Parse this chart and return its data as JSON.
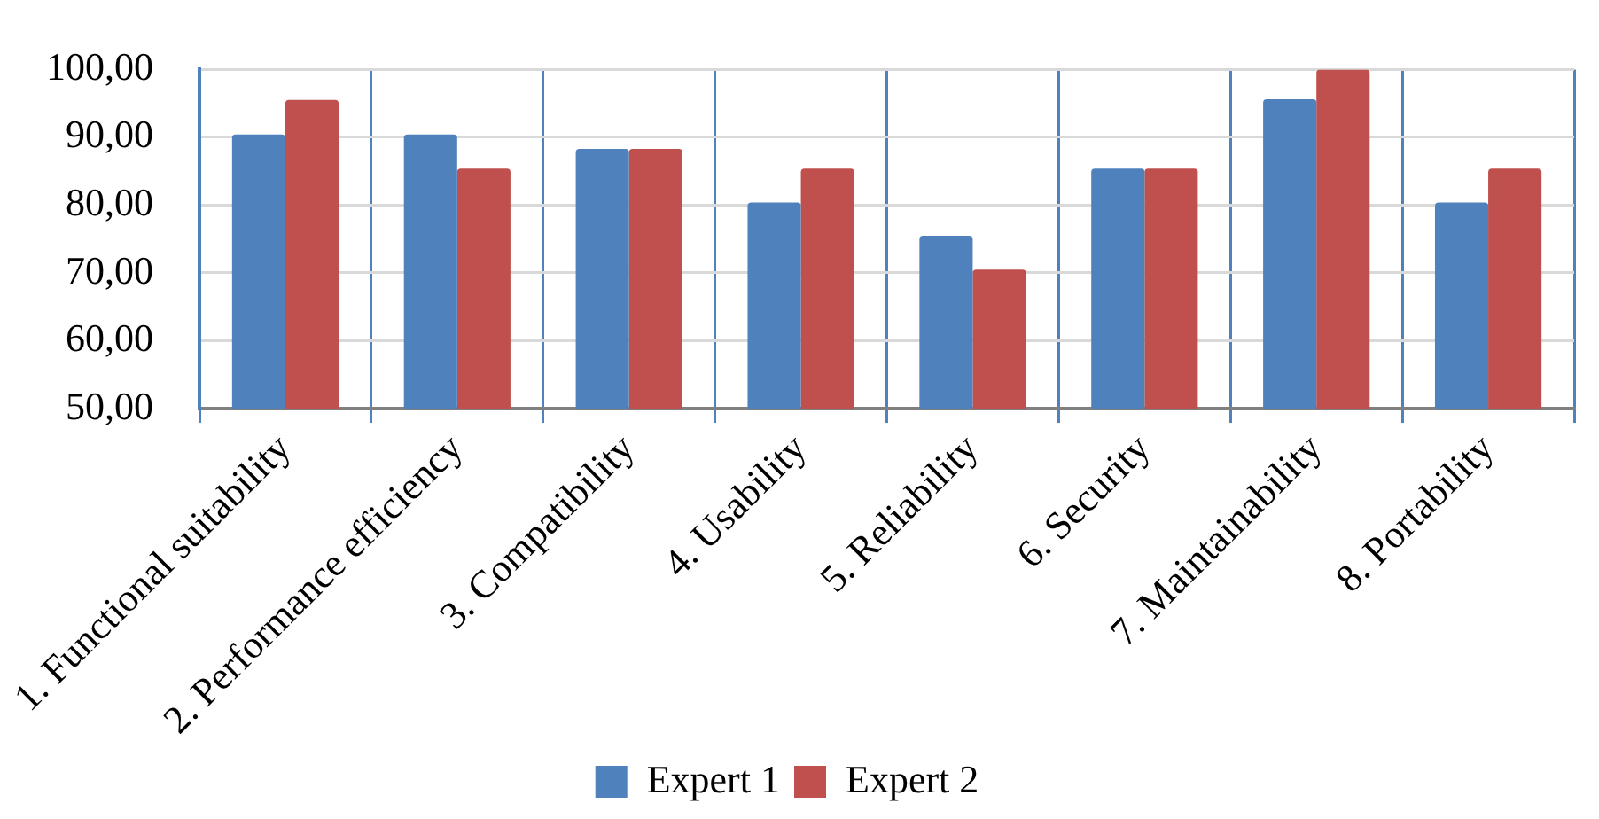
{
  "chart_data": {
    "type": "bar",
    "categories": [
      "1. Functional suitability",
      "2. Performance efficiency",
      "3. Compatibility",
      "4. Usability",
      "5. Reliability",
      "6. Security",
      "7. Maintainability",
      "8. Portability"
    ],
    "series": [
      {
        "name": "Expert 1",
        "color": "#4f81bd",
        "values": [
          90.4,
          90.4,
          88.3,
          80.4,
          75.5,
          85.4,
          95.6,
          80.4
        ]
      },
      {
        "name": "Expert 2",
        "color": "#c0504d",
        "values": [
          95.5,
          85.4,
          88.3,
          85.4,
          70.5,
          85.4,
          100,
          85.4
        ]
      }
    ],
    "ylim": [
      50,
      100
    ],
    "yticks": [
      {
        "value": 50,
        "label": "50,00"
      },
      {
        "value": 60,
        "label": "60,00"
      },
      {
        "value": 70,
        "label": "70,00"
      },
      {
        "value": 80,
        "label": "80,00"
      },
      {
        "value": 90,
        "label": "90,00"
      },
      {
        "value": 100,
        "label": "100,00"
      }
    ],
    "grid": true,
    "legend": "bottom"
  }
}
